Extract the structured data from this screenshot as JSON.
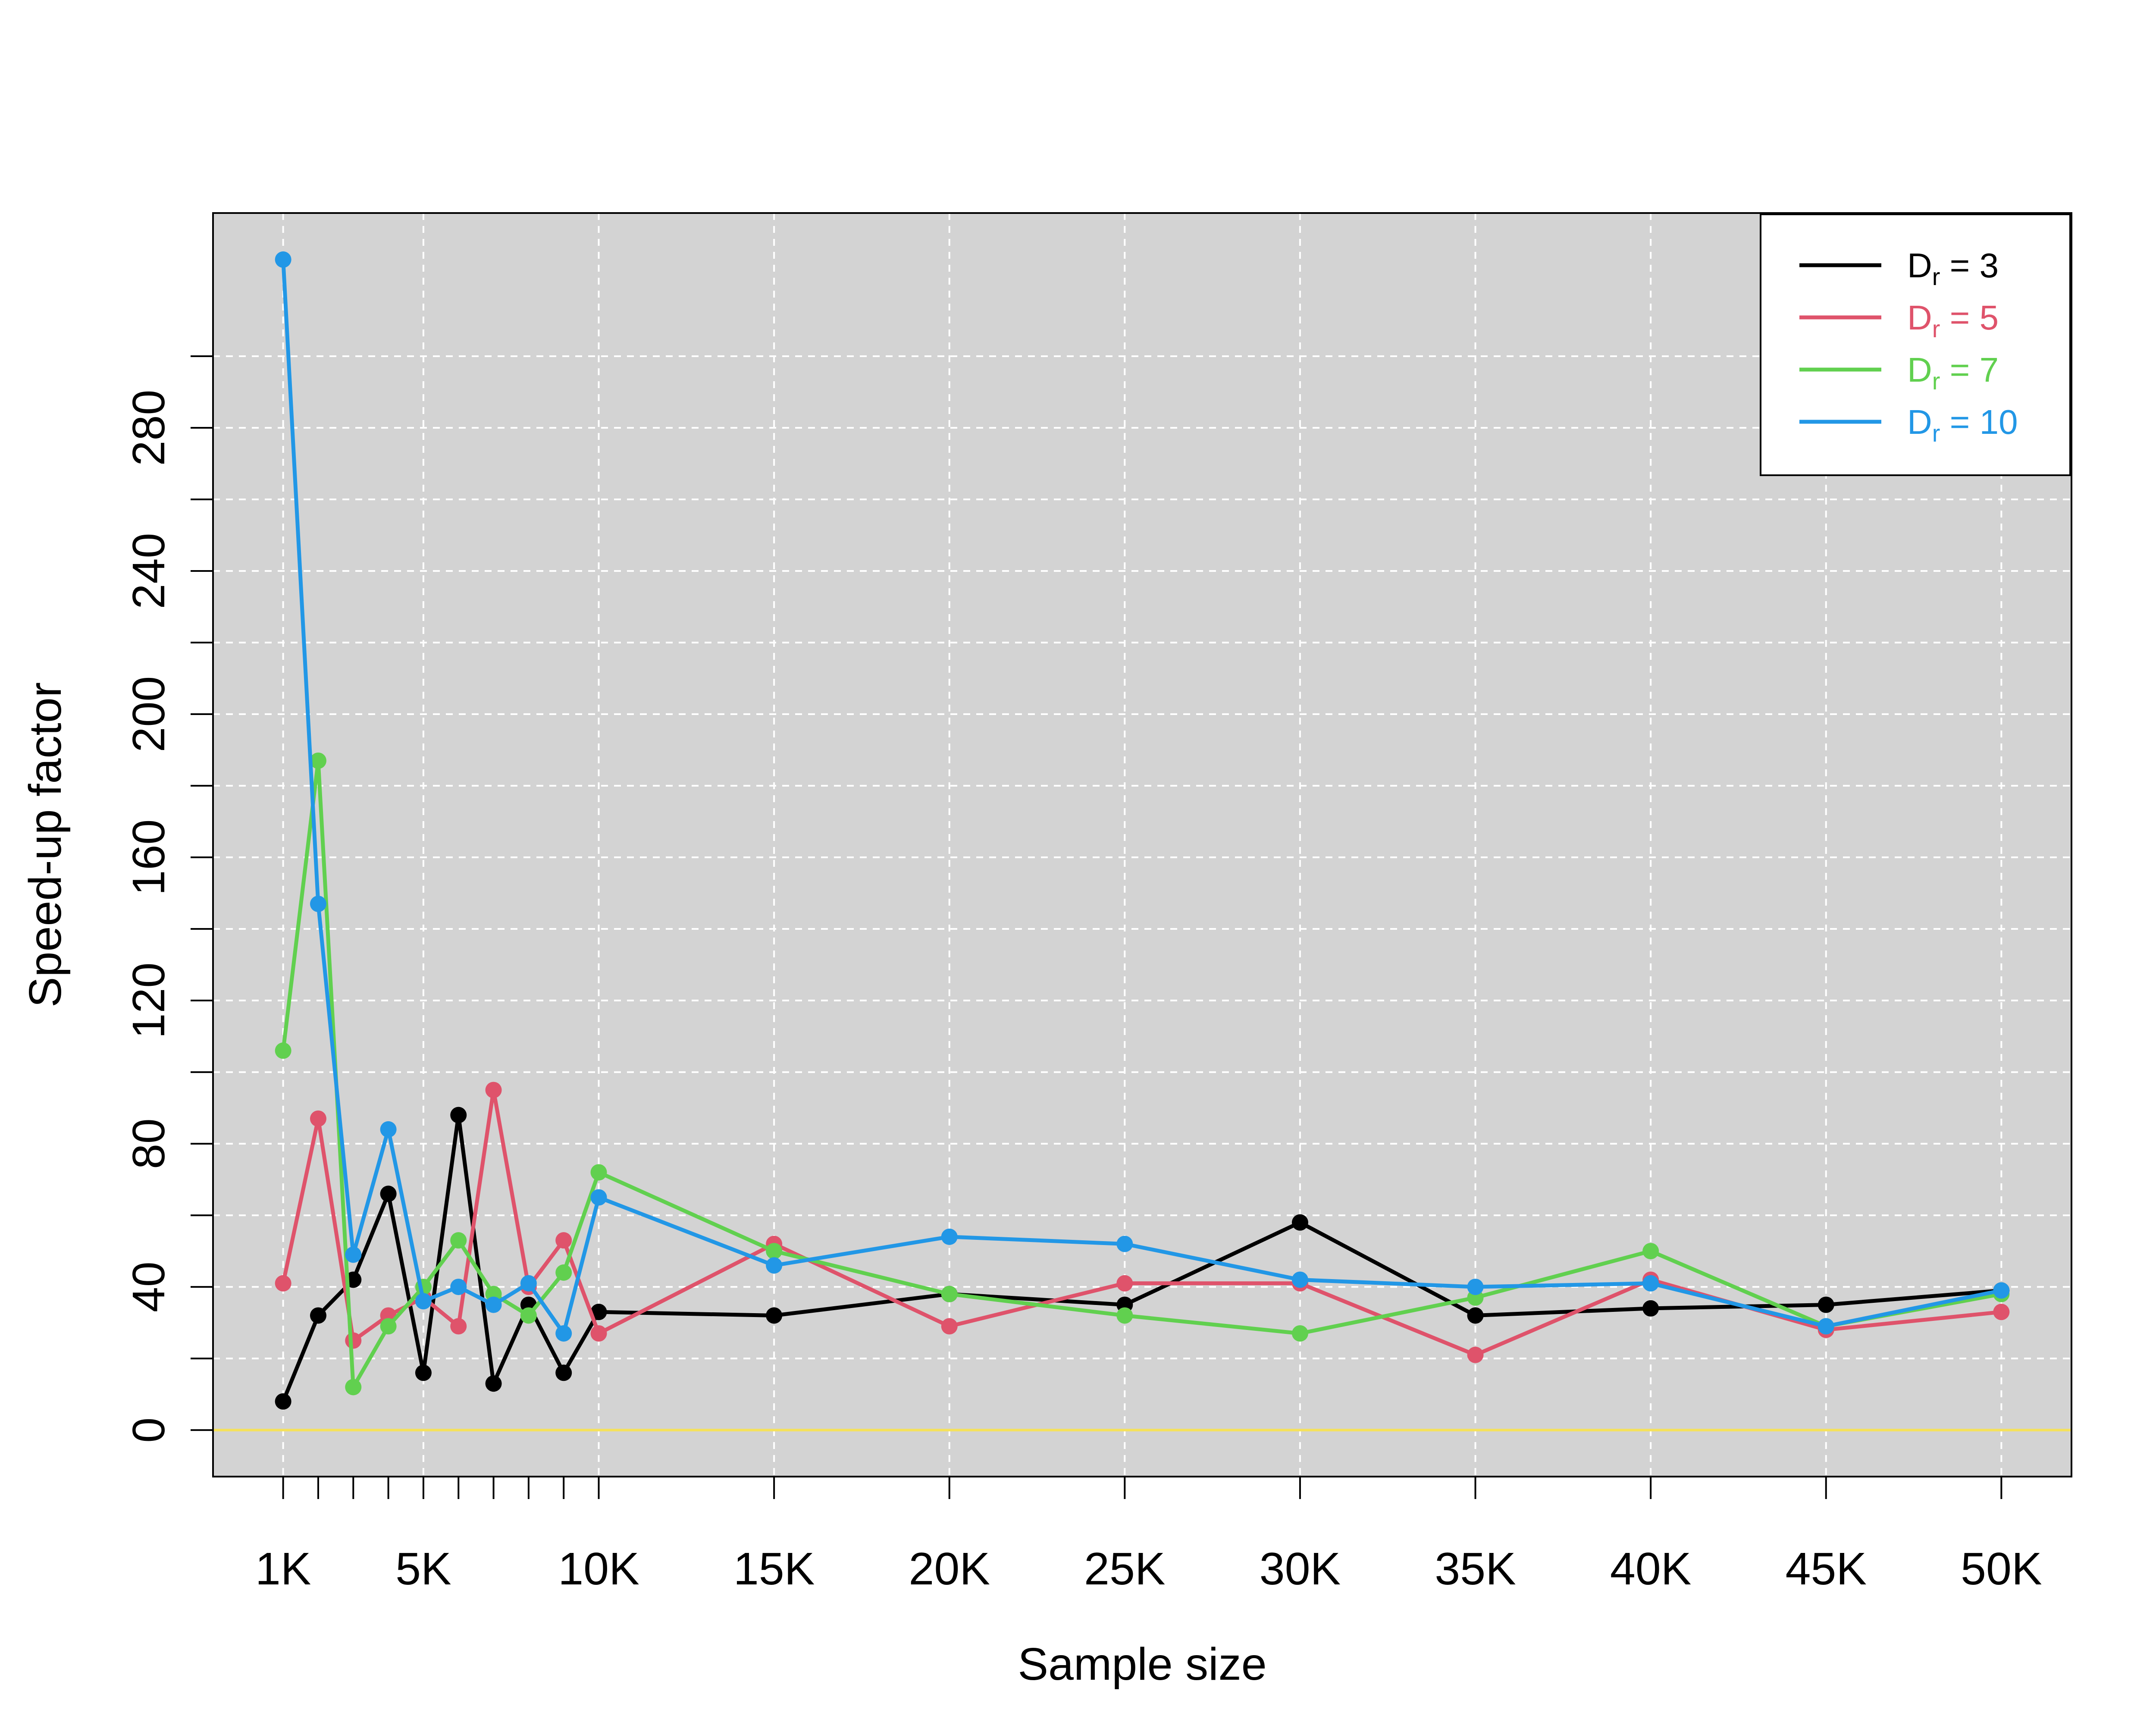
{
  "chart_data": {
    "type": "line",
    "title": "",
    "xlabel": "Sample size",
    "ylabel": "Speed-up factor",
    "x": [
      1000,
      2000,
      3000,
      4000,
      5000,
      6000,
      7000,
      8000,
      9000,
      10000,
      15000,
      20000,
      25000,
      30000,
      35000,
      40000,
      45000,
      50000
    ],
    "xlim": [
      -1000,
      52000
    ],
    "ylim": [
      -13,
      340
    ],
    "x_ticks": [
      1000,
      5000,
      10000,
      15000,
      20000,
      25000,
      30000,
      35000,
      40000,
      45000,
      50000
    ],
    "x_tick_labels": [
      "1K",
      "5K",
      "10K",
      "15K",
      "20K",
      "25K",
      "30K",
      "35K",
      "40K",
      "45K",
      "50K"
    ],
    "y_ticks_minor": [
      0,
      20,
      40,
      60,
      80,
      100,
      120,
      140,
      160,
      180,
      200,
      220,
      240,
      260,
      280,
      300
    ],
    "y_tick_labels": [
      "0",
      "40",
      "80",
      "120",
      "160",
      "200",
      "240",
      "280"
    ],
    "y_tick_label_values": [
      0,
      40,
      80,
      120,
      160,
      200,
      240,
      280
    ],
    "grid": true,
    "grid_x": [
      1000,
      5000,
      10000,
      15000,
      20000,
      25000,
      30000,
      35000,
      40000,
      45000,
      50000
    ],
    "grid_y": [
      20,
      40,
      60,
      80,
      100,
      120,
      140,
      160,
      180,
      200,
      220,
      240,
      260,
      280,
      300
    ],
    "reference_line": {
      "y": 0,
      "color": "#F5E15C"
    },
    "background": "#D3D3D3",
    "legend_position": "top-right",
    "series": [
      {
        "name": "D",
        "subscript": "r",
        "suffix": " = 3",
        "color": "#000000",
        "values": [
          8,
          32,
          42,
          66,
          16,
          88,
          13,
          35,
          16,
          33,
          32,
          38,
          35,
          58,
          32,
          34,
          35,
          39
        ]
      },
      {
        "name": "D",
        "subscript": "r",
        "suffix": " = 5",
        "color": "#DF536B",
        "values": [
          41,
          87,
          25,
          32,
          37,
          29,
          95,
          40,
          53,
          27,
          52,
          29,
          41,
          41,
          21,
          42,
          28,
          33
        ]
      },
      {
        "name": "D",
        "subscript": "r",
        "suffix": " = 7",
        "color": "#61D04F",
        "values": [
          106,
          187,
          12,
          29,
          40,
          53,
          38,
          32,
          44,
          72,
          50,
          38,
          32,
          27,
          37,
          50,
          29,
          38
        ]
      },
      {
        "name": "D",
        "subscript": "r",
        "suffix": " = 10",
        "color": "#2297E6",
        "values": [
          327,
          147,
          49,
          84,
          36,
          40,
          35,
          41,
          27,
          65,
          46,
          54,
          52,
          42,
          40,
          41,
          29,
          39
        ]
      }
    ]
  }
}
